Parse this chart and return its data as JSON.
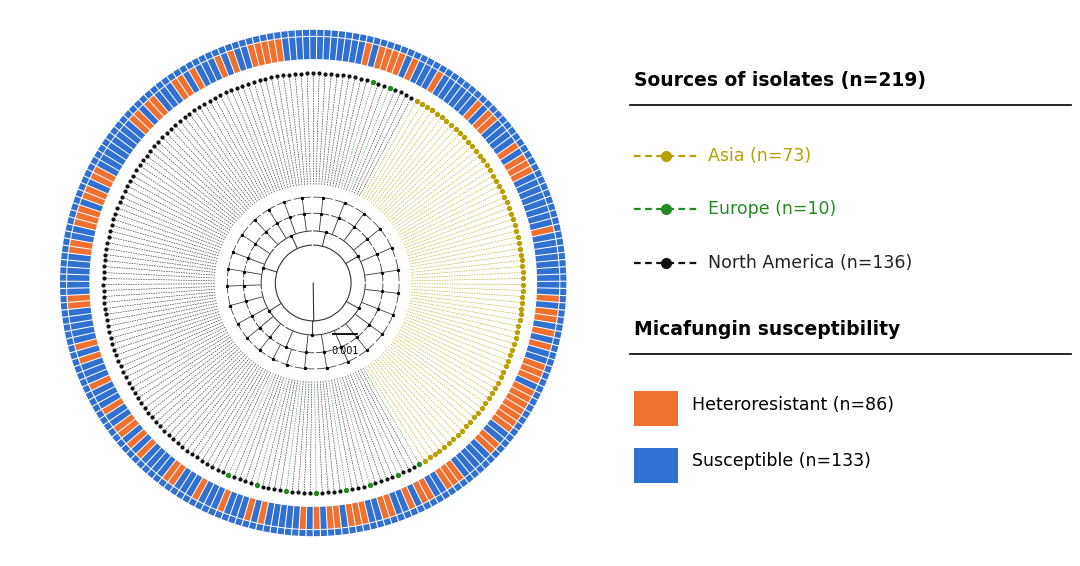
{
  "fig_width": 10.8,
  "fig_height": 5.66,
  "bg_color": "#ffffff",
  "legend_sources_title": "Sources of isolates (n=219)",
  "legend_sources": [
    {
      "label": "Asia (n=73)",
      "color": "#b8a000",
      "text_color": "#b8a000"
    },
    {
      "label": "Europe (n=10)",
      "color": "#228B22",
      "text_color": "#228B22"
    },
    {
      "label": "North America (n=136)",
      "color": "#222222",
      "text_color": "#222222"
    }
  ],
  "legend_susceptibility_title": "Micafungin susceptibility",
  "legend_susceptibility": [
    {
      "label": "Heteroresistant (n=86)",
      "color": "#F07030"
    },
    {
      "label": "Susceptible (n=133)",
      "color": "#3070D0"
    }
  ],
  "orange_color": "#F07030",
  "blue_color": "#3070D0",
  "n_total": 219,
  "n_asia": 73,
  "n_europe": 10,
  "n_north_america": 136,
  "n_heteroresistant": 86,
  "n_susceptible": 133,
  "scalebar_label": "0.001",
  "asia_color": "#b8a000",
  "europe_color": "#228B22",
  "black_color": "#111111"
}
